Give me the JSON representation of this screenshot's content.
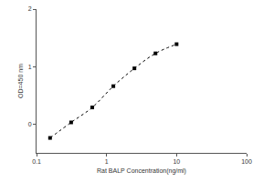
{
  "chart_data": {
    "type": "line",
    "x_label": "Rat BALP Concentration(ng/ml)",
    "y_label": "OD=450 nm",
    "x": [
      0.156,
      0.312,
      0.625,
      1.25,
      2.5,
      5,
      10
    ],
    "values": [
      -0.24,
      0.03,
      0.29,
      0.66,
      0.97,
      1.23,
      1.39
    ],
    "color": "#000000",
    "marker": "square",
    "line_style": "dot",
    "log": "x",
    "xlim": [
      0.1,
      100
    ],
    "xticks": [
      0.1,
      1,
      10,
      100
    ],
    "ylim": [
      -0.5,
      2
    ],
    "yticks": [
      0,
      1,
      2
    ],
    "grid": false
  }
}
